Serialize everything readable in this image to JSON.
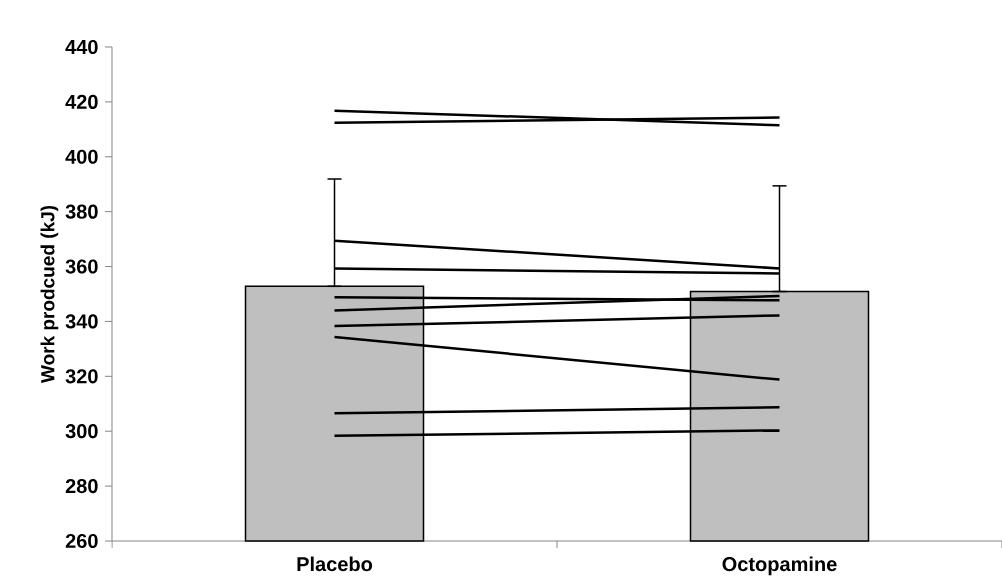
{
  "chart_data": {
    "type": "bar",
    "ylabel": "Work prodcued (kJ)",
    "categories": [
      "Placebo",
      "Octopamine"
    ],
    "ylim": [
      260,
      440
    ],
    "yticks": [
      260,
      280,
      300,
      320,
      340,
      360,
      380,
      400,
      420,
      440
    ],
    "grid": false,
    "series": [
      {
        "color": "#bfbfbf",
        "values": [
          352.8,
          350.9
        ],
        "errors": [
          [
            352.8,
            391.9
          ],
          [
            350.9,
            389.4
          ]
        ]
      },
      {
        "type": "line",
        "color": "#000000",
        "values": [
          416.8,
          411.5
        ]
      },
      {
        "type": "line",
        "color": "#000000",
        "values": [
          412.4,
          414.3
        ]
      },
      {
        "type": "line",
        "color": "#000000",
        "values": [
          369.4,
          359.3
        ]
      },
      {
        "type": "line",
        "color": "#000000",
        "values": [
          359.3,
          357.5
        ]
      },
      {
        "type": "line",
        "color": "#000000",
        "values": [
          348.8,
          347.7
        ]
      },
      {
        "type": "line",
        "color": "#000000",
        "values": [
          344.0,
          349.3
        ]
      },
      {
        "type": "line",
        "color": "#000000",
        "values": [
          338.3,
          342.2
        ]
      },
      {
        "type": "line",
        "color": "#000000",
        "values": [
          334.3,
          318.8
        ]
      },
      {
        "type": "line",
        "color": "#000000",
        "values": [
          306.5,
          308.7
        ]
      },
      {
        "type": "line",
        "color": "#000000",
        "values": [
          298.3,
          300.3
        ]
      }
    ]
  }
}
